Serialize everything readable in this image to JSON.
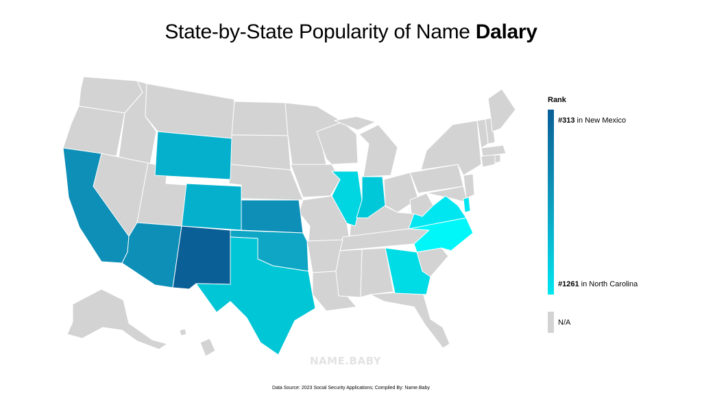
{
  "title": {
    "prefix": "State-by-State Popularity of Name",
    "name": "Dalary"
  },
  "legend": {
    "title": "Rank",
    "top_rank": "#313",
    "top_state": "in New Mexico",
    "bottom_rank": "#1261",
    "bottom_state": "in North Carolina",
    "na_label": "N/A",
    "colors": {
      "high": "#0a5f96",
      "low": "#00e6f0",
      "na": "#d3d3d3"
    }
  },
  "map_data": {
    "type": "choropleth",
    "metric": "Rank",
    "highlighted_states": [
      {
        "state": "New Mexico",
        "color": "#0a5f96"
      },
      {
        "state": "California",
        "color": "#0d8fb8"
      },
      {
        "state": "Arizona",
        "color": "#0d8fb8"
      },
      {
        "state": "Kansas",
        "color": "#0d8fb8"
      },
      {
        "state": "Oklahoma",
        "color": "#0ea6c4"
      },
      {
        "state": "Colorado",
        "color": "#05b0cc"
      },
      {
        "state": "Wyoming",
        "color": "#05b0cc"
      },
      {
        "state": "Texas",
        "color": "#00c6d6"
      },
      {
        "state": "Indiana",
        "color": "#00c8d8"
      },
      {
        "state": "Illinois",
        "color": "#00d6e2"
      },
      {
        "state": "Georgia",
        "color": "#00dce6"
      },
      {
        "state": "Virginia",
        "color": "#00e6f0"
      },
      {
        "state": "Delaware",
        "color": "#00e6f0"
      },
      {
        "state": "North Carolina",
        "color": "#00f7fa"
      }
    ],
    "other_states_color": "#d3d3d3"
  },
  "watermark": "NAME.BABY",
  "footer": "Data Source: 2023 Social Security Applications; Compiled By: Name.Baby"
}
